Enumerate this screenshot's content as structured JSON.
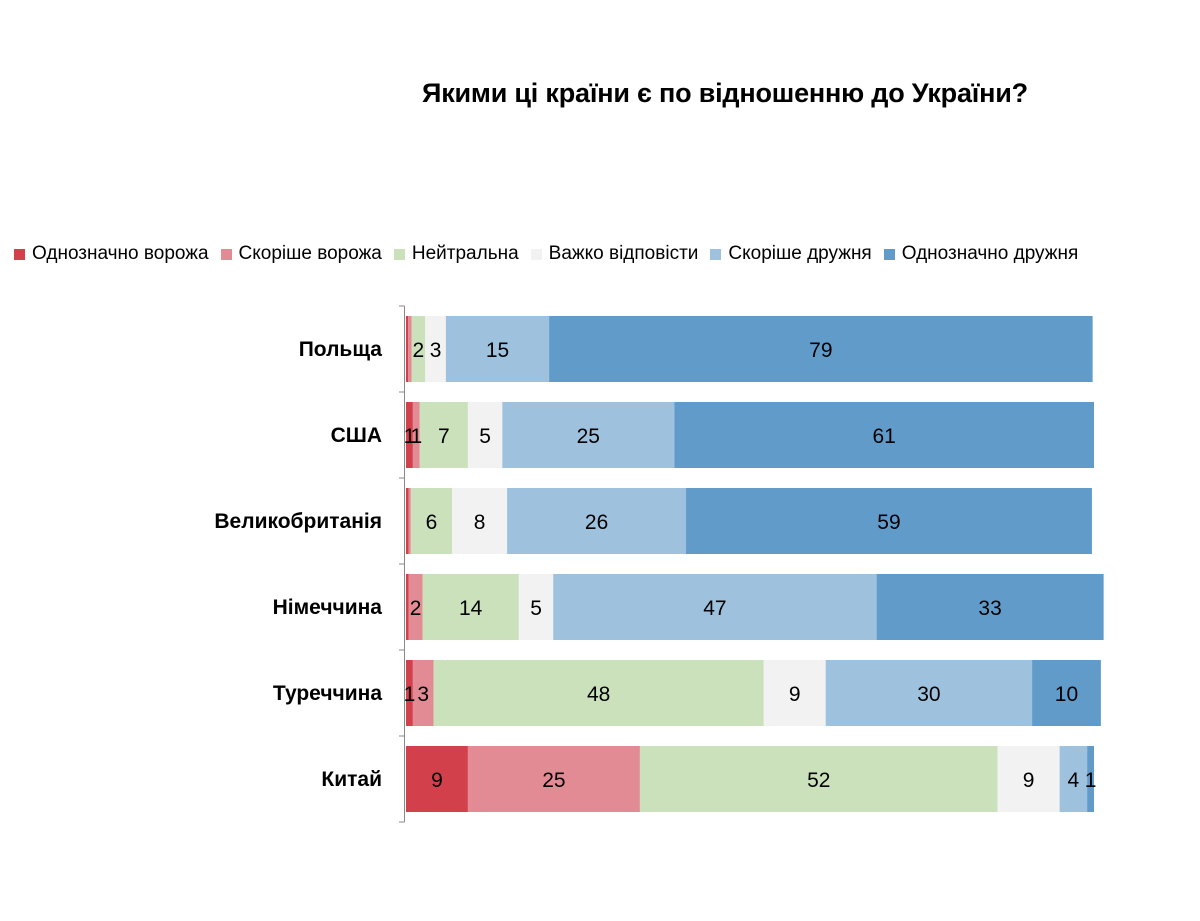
{
  "chart_data": {
    "type": "bar",
    "orientation": "horizontal",
    "stacked": true,
    "title": "Якими ці країни є по відношенню до України?",
    "categories": [
      "Польща",
      "США",
      "Великобританія",
      "Німеччина",
      "Туреччина",
      "Китай"
    ],
    "xlim": [
      0,
      100
    ],
    "legend_position": "top",
    "grid": false,
    "series": [
      {
        "name": "Однозначно ворожа",
        "color": "#d1404b",
        "values": [
          0.3,
          1,
          0.4,
          0.4,
          1,
          9
        ],
        "labels": [
          "",
          "1",
          "",
          "",
          "1",
          "9"
        ]
      },
      {
        "name": "Скоріше ворожа",
        "color": "#e38b94",
        "values": [
          0.5,
          1,
          0.3,
          2,
          3,
          25
        ],
        "labels": [
          "",
          "1",
          "",
          "2",
          "3",
          "25"
        ]
      },
      {
        "name": "Нейтральна",
        "color": "#cbe1bb",
        "values": [
          2,
          7,
          6,
          14,
          48,
          52
        ],
        "labels": [
          "2",
          "7",
          "6",
          "14",
          "48",
          "52"
        ]
      },
      {
        "name": "Важко відповісти",
        "color": "#f2f2f2",
        "values": [
          3,
          5,
          8,
          5,
          9,
          9
        ],
        "labels": [
          "3",
          "5",
          "8",
          "5",
          "9",
          "9"
        ]
      },
      {
        "name": "Скоріше дружня",
        "color": "#9ec2de",
        "values": [
          15,
          25,
          26,
          47,
          30,
          4
        ],
        "labels": [
          "15",
          "25",
          "26",
          "47",
          "30",
          "4"
        ]
      },
      {
        "name": "Однозначно дружня",
        "color": "#619bc9",
        "values": [
          79,
          61,
          59,
          33,
          10,
          1
        ],
        "labels": [
          "79",
          "61",
          "59",
          "33",
          "10",
          "1"
        ]
      }
    ]
  }
}
